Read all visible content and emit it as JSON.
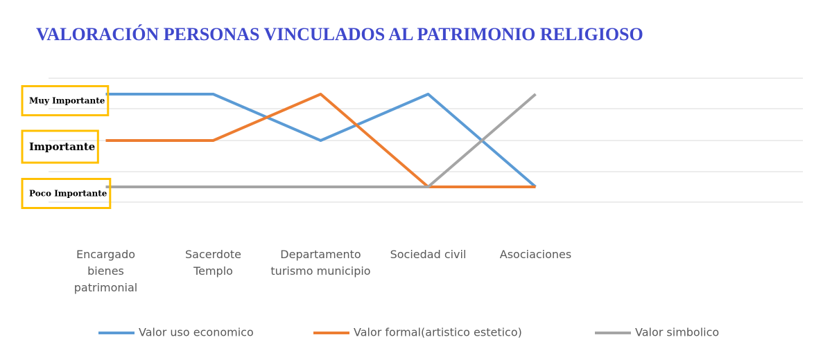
{
  "chart_data": {
    "type": "line",
    "title": "VALORACIÓN PERSONAS VINCULADOS AL PATRIMONIO RELIGIOSO",
    "categories": [
      "Encargado bienes patrimonial",
      "Sacerdote Templo",
      "Departamento turismo municipio",
      "Sociedad civil",
      "Asociaciones"
    ],
    "series": [
      {
        "name": "Valor uso economico",
        "color": "#5b9bd5",
        "values": [
          3,
          3,
          2,
          3,
          1
        ]
      },
      {
        "name": "Valor formal(artistico estetico)",
        "color": "#ed7d31",
        "values": [
          2,
          2,
          3,
          1,
          1
        ]
      },
      {
        "name": "Valor simbolico",
        "color": "#a5a5a5",
        "values": [
          1,
          1,
          1,
          1,
          3
        ]
      }
    ],
    "ylim": [
      0,
      4
    ],
    "yticks": [
      {
        "value": 1,
        "label": "Poco Importante"
      },
      {
        "value": 2,
        "label": "Importante"
      },
      {
        "value": 3,
        "label": "Muy Importante"
      }
    ],
    "legend": "bottom"
  }
}
